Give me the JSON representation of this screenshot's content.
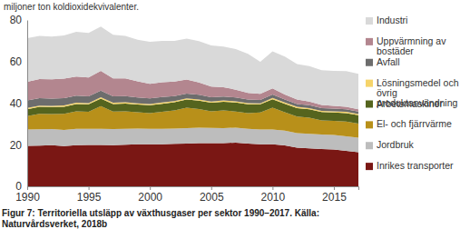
{
  "chart_data": {
    "type": "area",
    "stacked": true,
    "subtitle": "miljoner ton koldioxidekvivalenter.",
    "caption": [
      "Figur 7: Territoriella utsläpp av växthusgaser per sektor 1990–2017. Källa:",
      "Naturvårdsverket, 2018b"
    ],
    "x": [
      1990,
      1991,
      1992,
      1993,
      1994,
      1995,
      1996,
      1997,
      1998,
      1999,
      2000,
      2001,
      2002,
      2003,
      2004,
      2005,
      2006,
      2007,
      2008,
      2009,
      2010,
      2011,
      2012,
      2013,
      2014,
      2015,
      2016,
      2017
    ],
    "xlim": [
      1990,
      2017
    ],
    "xticks": [
      1990,
      1995,
      2000,
      2005,
      2010,
      2015
    ],
    "ylim": [
      0,
      80
    ],
    "yticks": [
      0,
      20,
      40,
      60,
      80
    ],
    "legend": "right",
    "series": [
      {
        "name": "Inrikes transporter",
        "color": "#7a1714",
        "values": [
          19.5,
          19.6,
          19.8,
          19.3,
          19.8,
          19.9,
          19.9,
          19.8,
          20.0,
          20.2,
          20.2,
          20.2,
          20.4,
          20.6,
          20.8,
          20.8,
          20.8,
          21.0,
          20.5,
          20.2,
          20.2,
          19.7,
          18.6,
          18.2,
          17.9,
          17.7,
          17.0,
          16.4
        ]
      },
      {
        "name": "Jordbruk",
        "color": "#bdbdbd",
        "values": [
          7.8,
          7.8,
          7.7,
          7.8,
          7.8,
          7.7,
          7.7,
          7.7,
          7.6,
          7.6,
          7.5,
          7.5,
          7.4,
          7.4,
          7.4,
          7.3,
          7.2,
          7.2,
          7.2,
          7.1,
          7.1,
          7.1,
          7.0,
          7.0,
          7.0,
          7.0,
          7.0,
          7.0
        ]
      },
      {
        "name": "El- och fjärrvärme",
        "color": "#b8901a",
        "values": [
          6.5,
          7.5,
          7.2,
          7.8,
          8.5,
          8.3,
          11.0,
          8.5,
          8.5,
          7.8,
          7.5,
          8.2,
          8.7,
          9.8,
          9.0,
          8.0,
          8.5,
          7.8,
          7.5,
          8.2,
          10.5,
          8.8,
          8.0,
          7.8,
          6.8,
          6.8,
          7.2,
          6.8
        ]
      },
      {
        "name": "Arbetsmaskiner",
        "color": "#55641e",
        "values": [
          3.3,
          3.3,
          3.4,
          3.4,
          3.5,
          3.5,
          3.6,
          3.6,
          3.7,
          3.7,
          3.8,
          3.8,
          3.9,
          3.9,
          4.0,
          4.1,
          4.2,
          4.3,
          4.2,
          3.9,
          4.1,
          4.1,
          4.0,
          4.0,
          4.0,
          4.0,
          4.0,
          4.0
        ]
      },
      {
        "name": "Lösningsmedel och övrig produktanvändning",
        "color": "#f6d46a",
        "values": [
          0.6,
          0.6,
          0.6,
          0.6,
          0.6,
          0.6,
          0.6,
          0.6,
          0.6,
          0.6,
          0.6,
          0.6,
          0.6,
          0.6,
          0.6,
          0.6,
          0.6,
          0.6,
          0.6,
          0.5,
          0.6,
          0.6,
          0.6,
          0.6,
          0.6,
          0.6,
          0.6,
          0.6
        ]
      },
      {
        "name": "Avfall",
        "color": "#6d6d6d",
        "values": [
          3.6,
          3.6,
          3.5,
          3.5,
          3.4,
          3.3,
          3.2,
          3.1,
          3.0,
          2.8,
          2.7,
          2.6,
          2.4,
          2.3,
          2.2,
          2.0,
          1.9,
          1.8,
          1.7,
          1.6,
          1.6,
          1.5,
          1.4,
          1.4,
          1.3,
          1.3,
          1.2,
          1.2
        ]
      },
      {
        "name": "Uppvärmning av bostäder",
        "color": "#b3868f",
        "values": [
          9.0,
          9.2,
          9.3,
          9.4,
          9.2,
          9.0,
          9.5,
          8.6,
          8.5,
          7.8,
          7.0,
          7.2,
          7.0,
          6.8,
          6.0,
          5.2,
          4.5,
          3.8,
          3.2,
          3.0,
          3.0,
          2.4,
          2.2,
          1.8,
          1.5,
          1.3,
          1.2,
          1.1
        ]
      },
      {
        "name": "Industri",
        "color": "#d9d9d9",
        "values": [
          21.0,
          20.8,
          20.5,
          20.8,
          21.5,
          21.5,
          21.3,
          21.0,
          20.5,
          20.0,
          20.2,
          19.8,
          19.6,
          19.6,
          19.8,
          19.8,
          19.5,
          19.5,
          18.8,
          15.4,
          17.8,
          18.2,
          17.0,
          17.0,
          16.8,
          16.8,
          17.2,
          17.0
        ]
      }
    ]
  }
}
